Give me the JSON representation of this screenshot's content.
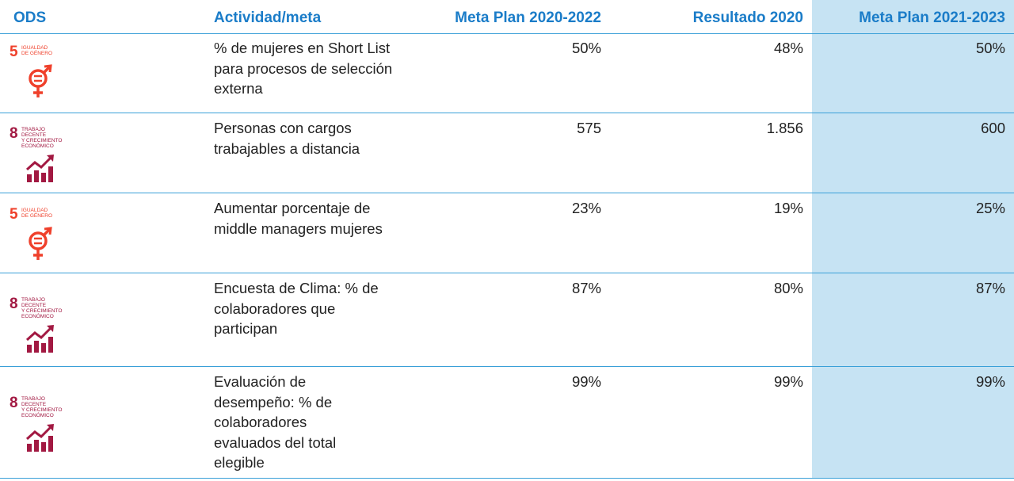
{
  "header": {
    "ods": "ODS",
    "actividad": "Actividad/meta",
    "meta_2020_2022": "Meta Plan 2020-2022",
    "resultado_2020": "Resultado 2020",
    "meta_2021_2023": "Meta  Plan 2021-2023"
  },
  "colors": {
    "header_text": "#1a7cc8",
    "rule": "#3aa0d8",
    "highlight_column": "#c6e3f3",
    "sdg5": "#ef402b",
    "sdg8": "#a21942"
  },
  "rows": [
    {
      "ods": {
        "number": "5",
        "text_line1": "IGUALDAD",
        "text_line2": "DE GÉNERO",
        "text_line3": "",
        "icon": "gender-equality-icon"
      },
      "actividad": "% de mujeres en Short List para procesos de selección externa",
      "meta_2020_2022": "50%",
      "resultado_2020": "48%",
      "meta_2021_2023": "50%"
    },
    {
      "ods": {
        "number": "8",
        "text_line1": "TRABAJO DECENTE",
        "text_line2": "Y CRECIMIENTO",
        "text_line3": "ECONÓMICO",
        "icon": "economic-growth-icon"
      },
      "actividad": "Personas con cargos trabajables a distancia",
      "meta_2020_2022": "575",
      "resultado_2020": "1.856",
      "meta_2021_2023": "600"
    },
    {
      "ods": {
        "number": "5",
        "text_line1": "IGUALDAD",
        "text_line2": "DE GÉNERO",
        "text_line3": "",
        "icon": "gender-equality-icon"
      },
      "actividad": "Aumentar porcentaje de middle managers mujeres",
      "meta_2020_2022": "23%",
      "resultado_2020": "19%",
      "meta_2021_2023": "25%"
    },
    {
      "ods": {
        "number": "8",
        "text_line1": "TRABAJO DECENTE",
        "text_line2": "Y CRECIMIENTO",
        "text_line3": "ECONÓMICO",
        "icon": "economic-growth-icon"
      },
      "actividad": "Encuesta de Clima: % de colaboradores que participan",
      "meta_2020_2022": "87%",
      "resultado_2020": "80%",
      "meta_2021_2023": "87%"
    },
    {
      "ods": {
        "number": "8",
        "text_line1": "TRABAJO DECENTE",
        "text_line2": "Y CRECIMIENTO",
        "text_line3": "ECONÓMICO",
        "icon": "economic-growth-icon"
      },
      "actividad": "Evaluación de desempeño: % de colaboradores evaluados del total elegible",
      "meta_2020_2022": "99%",
      "resultado_2020": "99%",
      "meta_2021_2023": "99%"
    }
  ]
}
